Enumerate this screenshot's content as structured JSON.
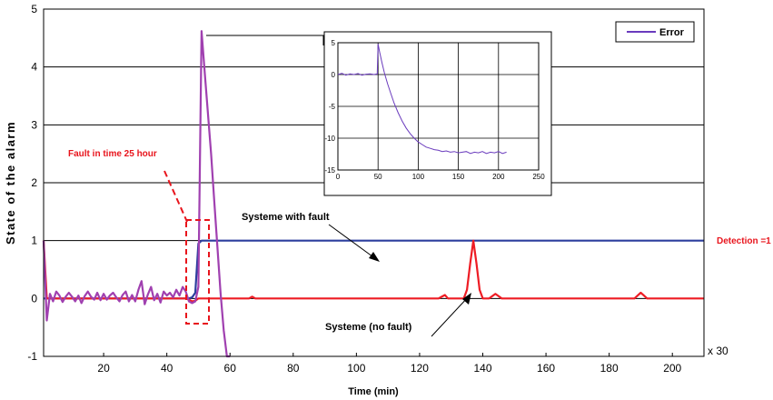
{
  "chart_data": [
    {
      "type": "line",
      "title": "",
      "xlabel": "Time (min)",
      "ylabel": "State of the alarm",
      "x_multiplier_label": "x 30",
      "xlim": [
        1,
        210
      ],
      "ylim": [
        -1,
        5
      ],
      "xticks": [
        "20",
        "40",
        "60",
        "80",
        "100",
        "120",
        "140",
        "160",
        "180",
        "200"
      ],
      "yticks": [
        "-1",
        "0",
        "1",
        "2",
        "3",
        "4",
        "5"
      ],
      "grid": "horizontal",
      "colors": {
        "purple": "#a040b0",
        "red": "#ee1c24",
        "blue": "#2c3f9e",
        "annotation": "#e8141c"
      },
      "series": [
        {
          "role": "systeme-with-fault",
          "color": "#2c3f9e",
          "x": [
            1,
            47,
            48,
            49,
            50,
            51,
            210
          ],
          "y": [
            0,
            0,
            0.02,
            0.1,
            0.95,
            1,
            1
          ]
        },
        {
          "role": "systeme-no-fault",
          "color": "#ee1c24",
          "x": [
            1,
            2,
            4,
            10,
            46,
            47,
            48,
            49,
            50,
            66,
            67,
            68,
            126,
            127,
            128,
            129,
            134,
            135,
            136,
            137,
            138,
            139,
            140,
            142,
            143,
            144,
            145,
            146,
            188,
            189,
            190,
            191,
            192,
            210
          ],
          "y": [
            1,
            0,
            0,
            0,
            0,
            -0.02,
            -0.05,
            -0.04,
            0,
            0,
            0.03,
            0,
            0,
            0.03,
            0.06,
            0,
            0,
            0.15,
            0.6,
            1.0,
            0.6,
            0.15,
            0,
            0,
            0.04,
            0.08,
            0.04,
            0,
            0,
            0.05,
            0.1,
            0.05,
            0,
            0
          ]
        },
        {
          "role": "error",
          "color": "#a040b0",
          "x": [
            1,
            2,
            3,
            4,
            5,
            6,
            7,
            8,
            9,
            10,
            11,
            12,
            13,
            14,
            15,
            16,
            17,
            18,
            19,
            20,
            21,
            22,
            23,
            24,
            25,
            26,
            27,
            28,
            29,
            30,
            31,
            32,
            33,
            34,
            35,
            36,
            37,
            38,
            39,
            40,
            41,
            42,
            43,
            44,
            45,
            46,
            47,
            48,
            49,
            50,
            51,
            52,
            53,
            54,
            55,
            56,
            57,
            58,
            59,
            60
          ],
          "y": [
            1,
            -0.38,
            0.08,
            -0.05,
            0.12,
            0.05,
            -0.06,
            0.03,
            0.1,
            0.03,
            -0.05,
            0.05,
            -0.08,
            0.04,
            0.12,
            0.03,
            -0.02,
            0.1,
            -0.03,
            0.08,
            -0.02,
            0.05,
            0.1,
            0.02,
            -0.05,
            0.06,
            0.12,
            -0.05,
            0.06,
            -0.05,
            0.15,
            0.3,
            -0.1,
            0.07,
            0.2,
            -0.03,
            0.08,
            -0.07,
            0.12,
            0.05,
            0.1,
            0.02,
            0.15,
            0.05,
            0.2,
            0.12,
            -0.05,
            -0.08,
            -0.05,
            0.2,
            4.62,
            3.9,
            3.2,
            2.5,
            1.7,
            0.9,
            0.1,
            -0.55,
            -1.0,
            -1.0
          ]
        }
      ],
      "legend": {
        "position": "top-right",
        "entries": [
          "Error"
        ]
      },
      "annotations": {
        "fault_time": "Fault in time 25 hour",
        "with_fault": "Systeme with fault",
        "no_fault": "Systeme (no fault)",
        "detection": "Detection =1"
      }
    },
    {
      "type": "line",
      "role": "inset",
      "xlim": [
        0,
        250
      ],
      "ylim": [
        -15,
        5
      ],
      "xticks": [
        "0",
        "50",
        "100",
        "150",
        "200",
        "250"
      ],
      "yticks": [
        "5",
        "0",
        "-5",
        "-10",
        "-15"
      ],
      "grid": "both",
      "series": [
        {
          "color": "#6a3bbd",
          "x": [
            0,
            5,
            10,
            15,
            20,
            25,
            30,
            35,
            40,
            45,
            49,
            50,
            52,
            55,
            58,
            62,
            66,
            70,
            75,
            80,
            85,
            90,
            95,
            100,
            105,
            110,
            115,
            120,
            125,
            130,
            135,
            140,
            145,
            150,
            155,
            160,
            165,
            170,
            175,
            180,
            185,
            190,
            195,
            200,
            205,
            210
          ],
          "y": [
            0,
            0.2,
            -0.1,
            0.1,
            0,
            0.15,
            -0.1,
            0.05,
            0.1,
            0,
            0.1,
            4.8,
            3.5,
            1.8,
            0.2,
            -1.5,
            -3,
            -4.5,
            -6,
            -7.3,
            -8.4,
            -9.3,
            -10,
            -10.6,
            -11,
            -11.4,
            -11.6,
            -11.8,
            -11.9,
            -12.1,
            -12,
            -12.2,
            -12.1,
            -12.3,
            -12.2,
            -12.1,
            -12.4,
            -12.2,
            -12.3,
            -12.1,
            -12.4,
            -12.2,
            -12.3,
            -12.1,
            -12.4,
            -12.2
          ]
        }
      ]
    }
  ]
}
